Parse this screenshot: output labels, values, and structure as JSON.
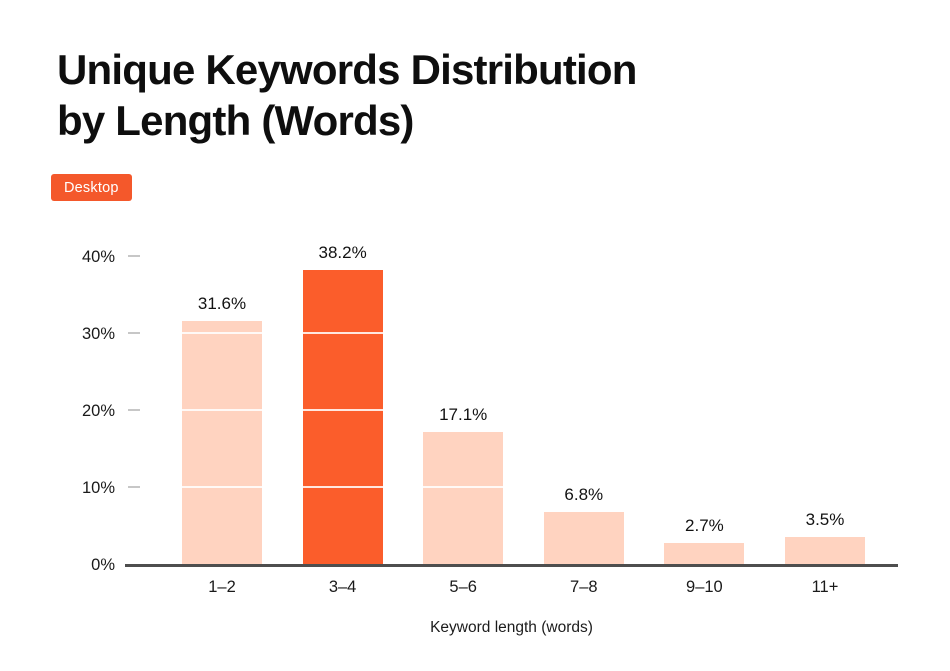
{
  "header": {
    "title_line1": "Unique Keywords Distribution",
    "title_line2": "by Length (Words)",
    "badge": {
      "label": "Desktop",
      "bg_color": "#F4582B",
      "text_color": "#FFFFFF"
    }
  },
  "chart_data": {
    "type": "bar",
    "title": "Unique Keywords Distribution by Length (Words)",
    "categories": [
      "1–2",
      "3–4",
      "5–6",
      "7–8",
      "9–10",
      "11+"
    ],
    "values": [
      31.6,
      38.2,
      17.1,
      6.8,
      2.7,
      3.5
    ],
    "value_labels": [
      "31.6%",
      "38.2%",
      "17.1%",
      "6.8%",
      "2.7%",
      "3.5%"
    ],
    "highlight_index": 1,
    "highlight_category": "3–4",
    "xlabel": "Keyword length (words)",
    "ylabel": "",
    "ylim": [
      0,
      40
    ],
    "yticks": [
      0,
      10,
      20,
      30,
      40
    ],
    "ytick_labels": [
      "0%",
      "10%",
      "20%",
      "30%",
      "40%"
    ],
    "grid": "white overlay lines on bars at 10% steps, no gridlines on background",
    "legend": "none",
    "colors": {
      "bar_default": "#FFD3C0",
      "bar_highlight": "#FB5D2B",
      "axis_line": "#4E4E4E",
      "tick_dash": "#C7C7C7",
      "text": "#121212"
    }
  }
}
